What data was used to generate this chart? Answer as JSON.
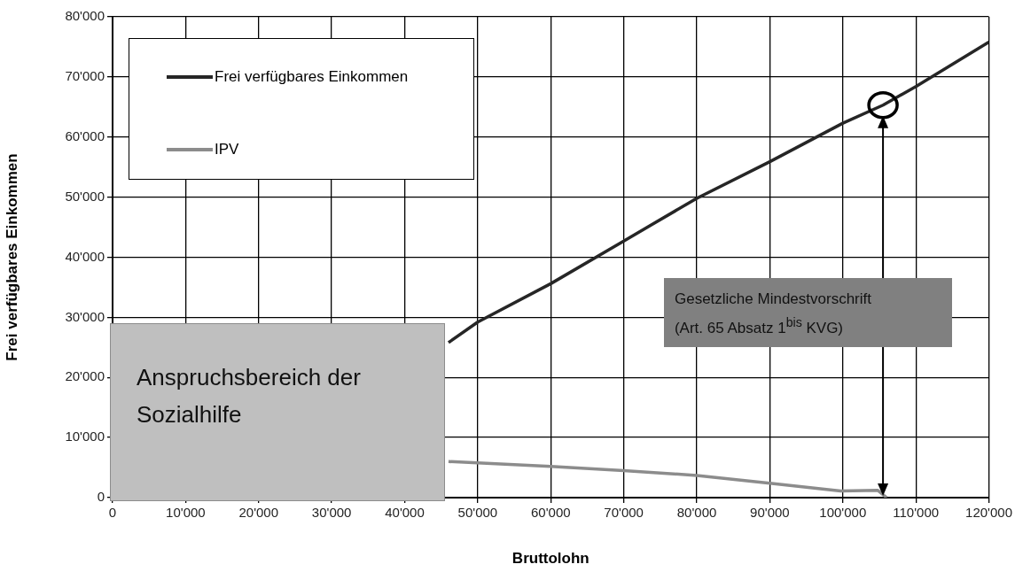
{
  "chart_data": {
    "type": "line",
    "xlabel": "Bruttolohn",
    "ylabel": "Frei verfügbares Einkommen",
    "xlim": [
      0,
      120000
    ],
    "ylim": [
      0,
      80000
    ],
    "xticks": [
      0,
      {
        "value": 10000,
        "label": "10'000"
      },
      {
        "value": 20000,
        "label": "20'000"
      },
      {
        "value": 30000,
        "label": "30'000"
      },
      {
        "value": 40000,
        "label": "40'000"
      },
      {
        "value": 50000,
        "label": "50'000"
      },
      {
        "value": 60000,
        "label": "60'000"
      },
      {
        "value": 70000,
        "label": "70'000"
      },
      {
        "value": 80000,
        "label": "80'000"
      },
      {
        "value": 90000,
        "label": "90'000"
      },
      {
        "value": 100000,
        "label": "100'000"
      },
      {
        "value": 110000,
        "label": "110'000"
      },
      {
        "value": 120000,
        "label": "120'000"
      }
    ],
    "yticks": [
      0,
      {
        "value": 10000,
        "label": "10'000"
      },
      {
        "value": 20000,
        "label": "20'000"
      },
      {
        "value": 30000,
        "label": "30'000"
      },
      {
        "value": 40000,
        "label": "40'000"
      },
      {
        "value": 50000,
        "label": "50'000"
      },
      {
        "value": 60000,
        "label": "60'000"
      },
      {
        "value": 70000,
        "label": "70'000"
      },
      {
        "value": 80000,
        "label": "80'000"
      }
    ],
    "grid": true,
    "legend": "top left",
    "marker": "none",
    "line_style": "solid",
    "series": [
      {
        "name": "Frei verfügbares Einkommen",
        "color": "#262626",
        "x": [
          46000,
          50000,
          60000,
          70000,
          80000,
          90000,
          100000,
          105500,
          110000,
          120000
        ],
        "values": [
          25800,
          29200,
          35600,
          42700,
          49800,
          55900,
          62300,
          65300,
          68400,
          75800
        ]
      },
      {
        "name": "IPV",
        "color": "#8c8c8c",
        "x": [
          46000,
          50000,
          60000,
          70000,
          80000,
          90000,
          99700,
          104800,
          106000
        ],
        "values": [
          6000,
          5800,
          5200,
          4500,
          3700,
          2400,
          1100,
          1200,
          0
        ]
      }
    ],
    "annotations": [
      "Anspruchsbereich der Sozialhilfe",
      "Gesetzliche Mindestvorschrift (Art. 65 Absatz 1$^{bis}$ KVG)"
    ]
  }
}
